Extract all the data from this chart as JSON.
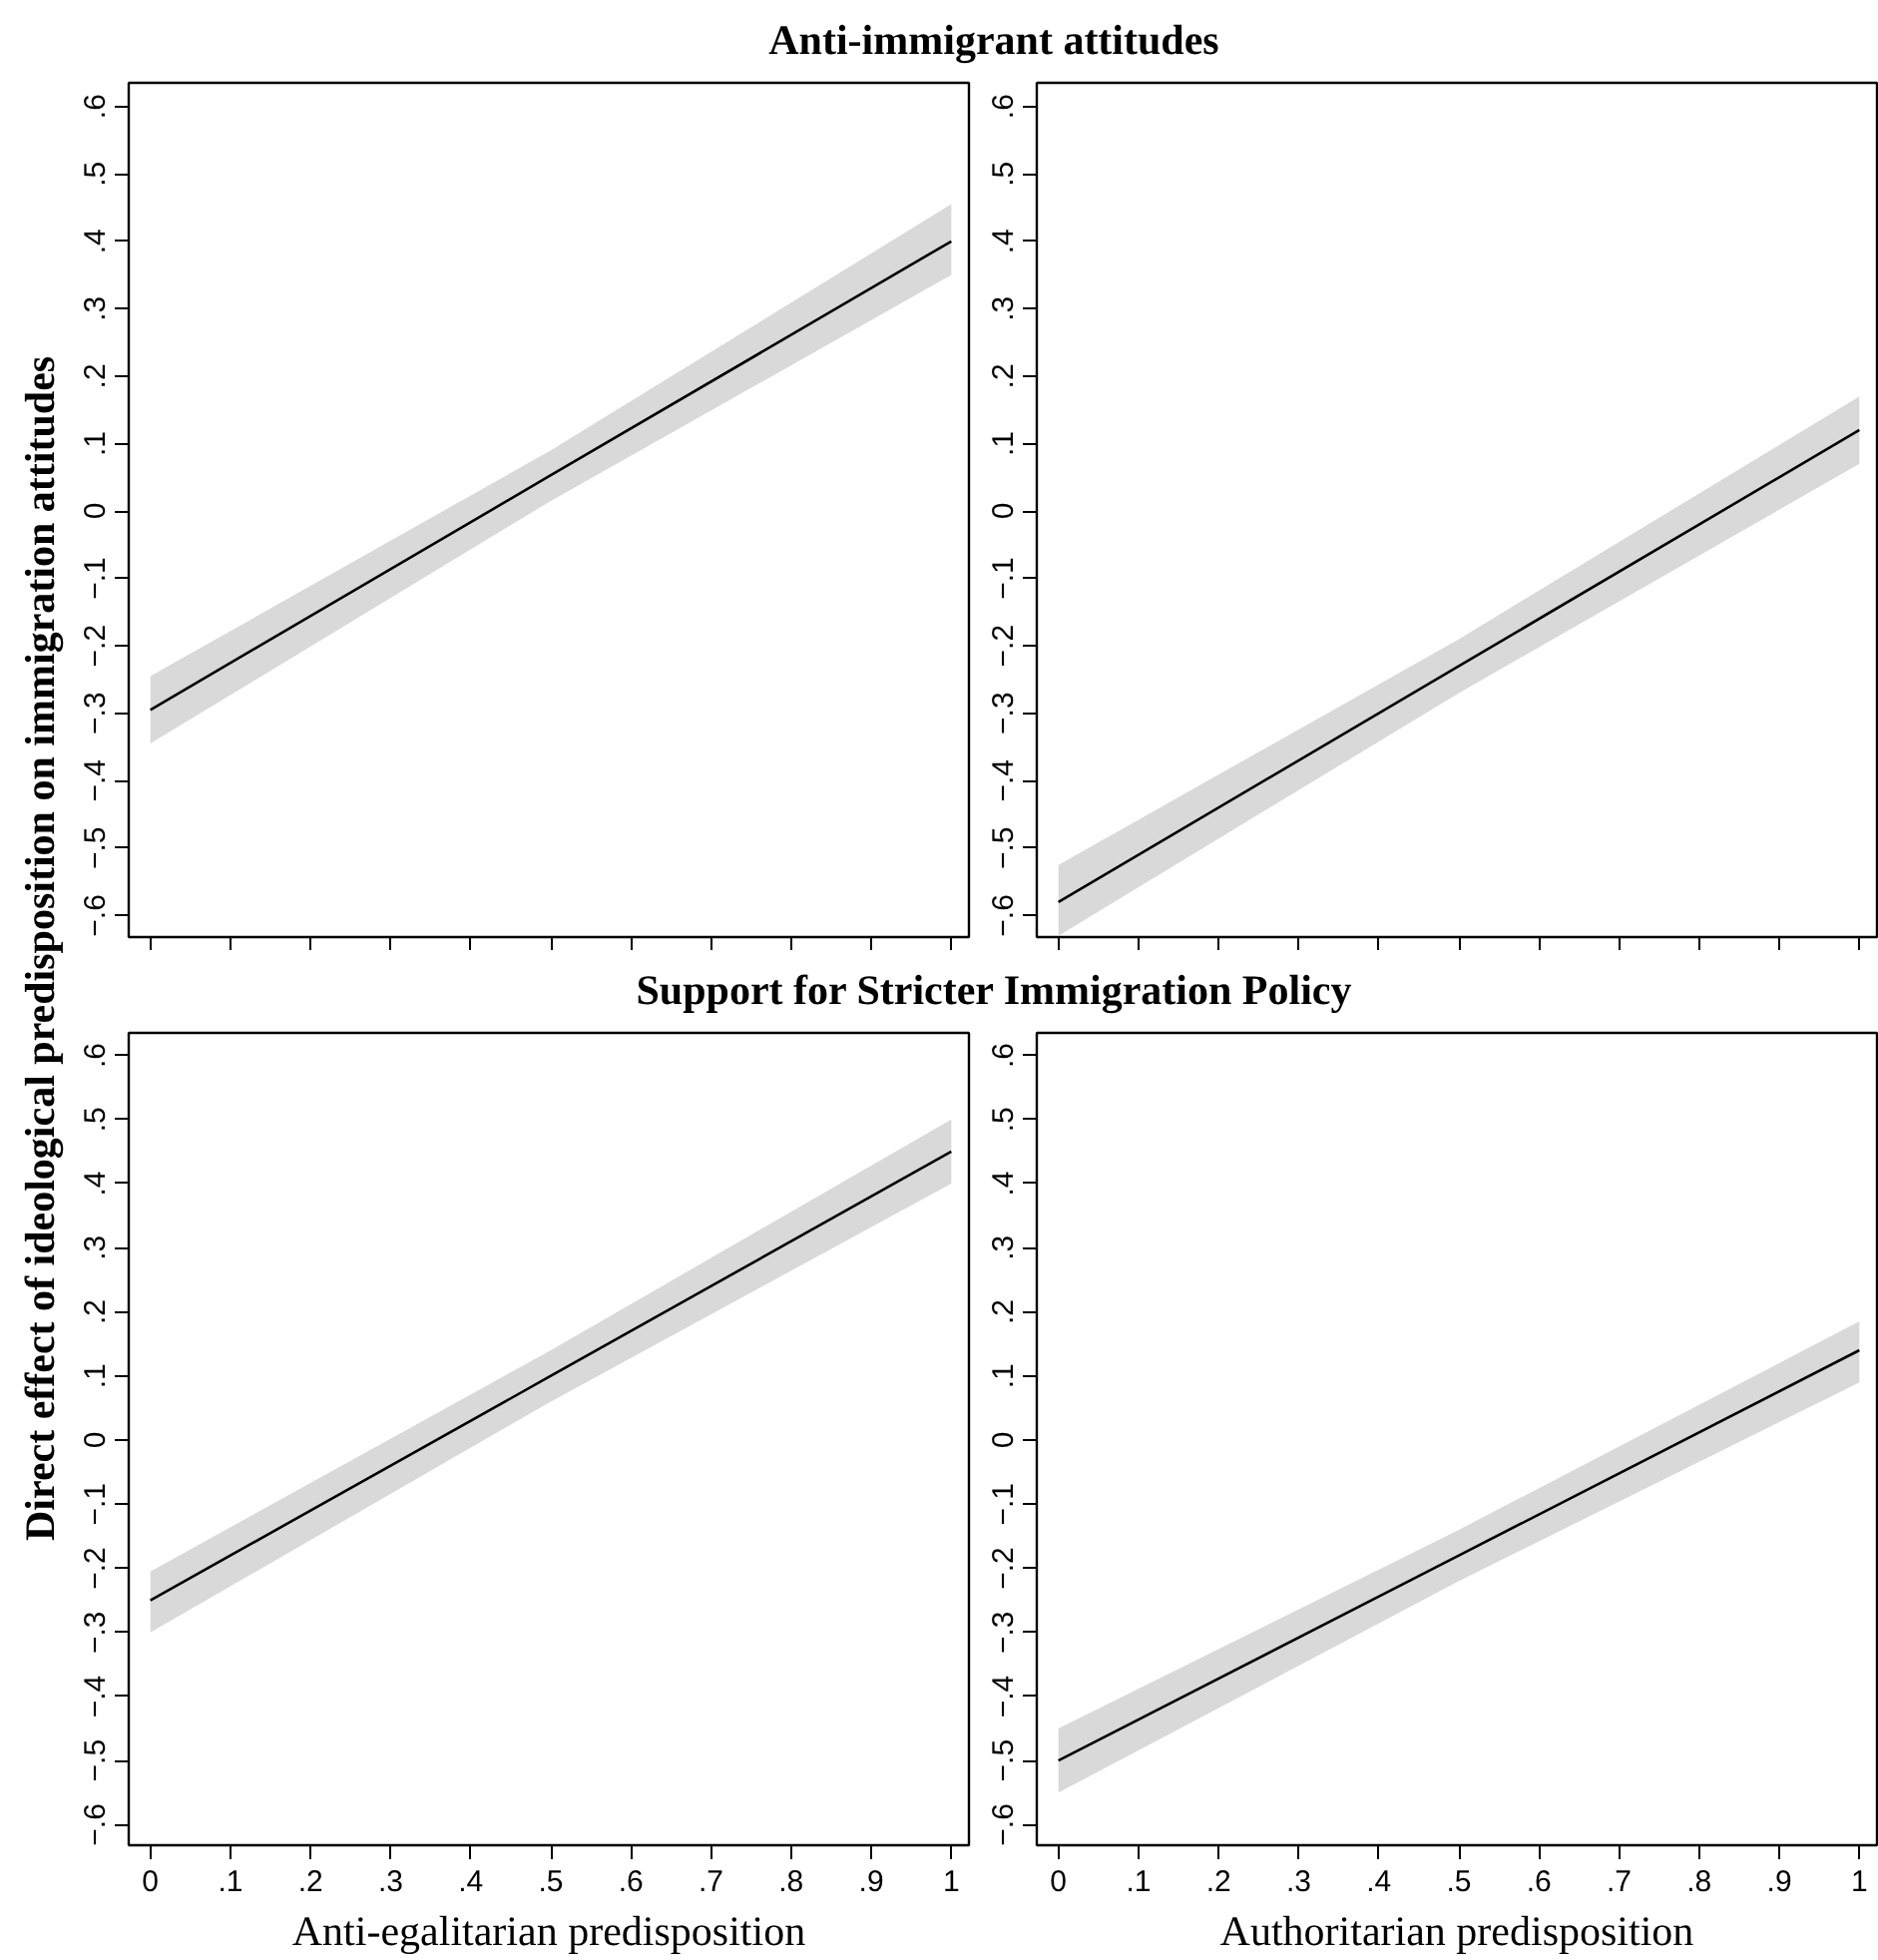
{
  "chart_data": [
    {
      "type": "line",
      "title": "Anti-immigrant attitudes",
      "ylabel": "Direct effect of ideological predisposition on immigration attitudes",
      "x": [
        0,
        0.5,
        1
      ],
      "series": [
        {
          "color": "#000000",
          "values": [
            -0.295,
            0.053,
            0.4
          ],
          "lower": [
            -0.345,
            0.015,
            0.35
          ],
          "upper": [
            -0.245,
            0.09,
            0.455
          ]
        }
      ],
      "xlim": [
        -0.027,
        1.022
      ],
      "ylim": [
        -0.632,
        0.635
      ],
      "xticks": [
        {
          "value": 0,
          "label": null
        },
        {
          "value": 0.1,
          "label": null
        },
        {
          "value": 0.2,
          "label": null
        },
        {
          "value": 0.3,
          "label": null
        },
        {
          "value": 0.4,
          "label": null
        },
        {
          "value": 0.5,
          "label": null
        },
        {
          "value": 0.6,
          "label": null
        },
        {
          "value": 0.7,
          "label": null
        },
        {
          "value": 0.8,
          "label": null
        },
        {
          "value": 0.9,
          "label": null
        },
        {
          "value": 1,
          "label": null
        }
      ],
      "yticks": [
        {
          "value": -0.6,
          "label": "−.6"
        },
        {
          "value": -0.5,
          "label": "−.5"
        },
        {
          "value": -0.4,
          "label": "−.4"
        },
        {
          "value": -0.3,
          "label": "−.3"
        },
        {
          "value": -0.2,
          "label": "−.2"
        },
        {
          "value": -0.1,
          "label": "−.1"
        },
        0,
        {
          "value": 0.1,
          "label": ".1"
        },
        {
          "value": 0.2,
          "label": ".2"
        },
        {
          "value": 0.3,
          "label": ".3"
        },
        {
          "value": 0.4,
          "label": ".4"
        },
        {
          "value": 0.5,
          "label": ".5"
        },
        {
          "value": 0.6,
          "label": ".6"
        }
      ],
      "tick_labels": "y",
      "grid": false
    },
    {
      "type": "line",
      "x": [
        0,
        0.5,
        1
      ],
      "series": [
        {
          "color": "#000000",
          "values": [
            -0.58,
            -0.23,
            0.12
          ],
          "lower": [
            -0.63,
            -0.27,
            0.07
          ],
          "upper": [
            -0.525,
            -0.19,
            0.17
          ]
        }
      ],
      "xlim": [
        -0.027,
        1.022
      ],
      "ylim": [
        -0.632,
        0.635
      ],
      "xticks": [
        {
          "value": 0,
          "label": null
        },
        {
          "value": 0.1,
          "label": null
        },
        {
          "value": 0.2,
          "label": null
        },
        {
          "value": 0.3,
          "label": null
        },
        {
          "value": 0.4,
          "label": null
        },
        {
          "value": 0.5,
          "label": null
        },
        {
          "value": 0.6,
          "label": null
        },
        {
          "value": 0.7,
          "label": null
        },
        {
          "value": 0.8,
          "label": null
        },
        {
          "value": 0.9,
          "label": null
        },
        {
          "value": 1,
          "label": null
        }
      ],
      "yticks": [
        {
          "value": -0.6,
          "label": "−.6"
        },
        {
          "value": -0.5,
          "label": "−.5"
        },
        {
          "value": -0.4,
          "label": "−.4"
        },
        {
          "value": -0.3,
          "label": "−.3"
        },
        {
          "value": -0.2,
          "label": "−.2"
        },
        {
          "value": -0.1,
          "label": "−.1"
        },
        0,
        {
          "value": 0.1,
          "label": ".1"
        },
        {
          "value": 0.2,
          "label": ".2"
        },
        {
          "value": 0.3,
          "label": ".3"
        },
        {
          "value": 0.4,
          "label": ".4"
        },
        {
          "value": 0.5,
          "label": ".5"
        },
        {
          "value": 0.6,
          "label": ".6"
        }
      ],
      "tick_labels": "y",
      "grid": false
    },
    {
      "type": "line",
      "title": "Support for Stricter Immigration Policy",
      "xlabel": "Anti-egalitarian predisposition",
      "x": [
        0,
        0.5,
        1
      ],
      "series": [
        {
          "color": "#000000",
          "values": [
            -0.25,
            0.1,
            0.45
          ],
          "lower": [
            -0.3,
            0.06,
            0.4
          ],
          "upper": [
            -0.205,
            0.14,
            0.5
          ]
        }
      ],
      "xlim": [
        -0.027,
        1.022
      ],
      "ylim": [
        -0.632,
        0.635
      ],
      "xticks": [
        0,
        {
          "value": 0.1,
          "label": ".1"
        },
        {
          "value": 0.2,
          "label": ".2"
        },
        {
          "value": 0.3,
          "label": ".3"
        },
        {
          "value": 0.4,
          "label": ".4"
        },
        {
          "value": 0.5,
          "label": ".5"
        },
        {
          "value": 0.6,
          "label": ".6"
        },
        {
          "value": 0.7,
          "label": ".7"
        },
        {
          "value": 0.8,
          "label": ".8"
        },
        {
          "value": 0.9,
          "label": ".9"
        },
        1
      ],
      "yticks": [
        {
          "value": -0.6,
          "label": "−.6"
        },
        {
          "value": -0.5,
          "label": "−.5"
        },
        {
          "value": -0.4,
          "label": "−.4"
        },
        {
          "value": -0.3,
          "label": "−.3"
        },
        {
          "value": -0.2,
          "label": "−.2"
        },
        {
          "value": -0.1,
          "label": "−.1"
        },
        0,
        {
          "value": 0.1,
          "label": ".1"
        },
        {
          "value": 0.2,
          "label": ".2"
        },
        {
          "value": 0.3,
          "label": ".3"
        },
        {
          "value": 0.4,
          "label": ".4"
        },
        {
          "value": 0.5,
          "label": ".5"
        },
        {
          "value": 0.6,
          "label": ".6"
        }
      ],
      "grid": false
    },
    {
      "type": "line",
      "xlabel": "Authoritarian predisposition",
      "x": [
        0,
        0.5,
        1
      ],
      "series": [
        {
          "color": "#000000",
          "values": [
            -0.5,
            -0.18,
            0.14
          ],
          "lower": [
            -0.55,
            -0.22,
            0.09
          ],
          "upper": [
            -0.45,
            -0.14,
            0.185
          ]
        }
      ],
      "xlim": [
        -0.027,
        1.022
      ],
      "ylim": [
        -0.632,
        0.635
      ],
      "xticks": [
        0,
        {
          "value": 0.1,
          "label": ".1"
        },
        {
          "value": 0.2,
          "label": ".2"
        },
        {
          "value": 0.3,
          "label": ".3"
        },
        {
          "value": 0.4,
          "label": ".4"
        },
        {
          "value": 0.5,
          "label": ".5"
        },
        {
          "value": 0.6,
          "label": ".6"
        },
        {
          "value": 0.7,
          "label": ".7"
        },
        {
          "value": 0.8,
          "label": ".8"
        },
        {
          "value": 0.9,
          "label": ".9"
        },
        1
      ],
      "yticks": [
        {
          "value": -0.6,
          "label": "−.6"
        },
        {
          "value": -0.5,
          "label": "−.5"
        },
        {
          "value": -0.4,
          "label": "−.4"
        },
        {
          "value": -0.3,
          "label": "−.3"
        },
        {
          "value": -0.2,
          "label": "−.2"
        },
        {
          "value": -0.1,
          "label": "−.1"
        },
        0,
        {
          "value": 0.1,
          "label": ".1"
        },
        {
          "value": 0.2,
          "label": ".2"
        },
        {
          "value": 0.3,
          "label": ".3"
        },
        {
          "value": 0.4,
          "label": ".4"
        },
        {
          "value": 0.5,
          "label": ".5"
        },
        {
          "value": 0.6,
          "label": ".6"
        }
      ],
      "grid": false
    }
  ]
}
